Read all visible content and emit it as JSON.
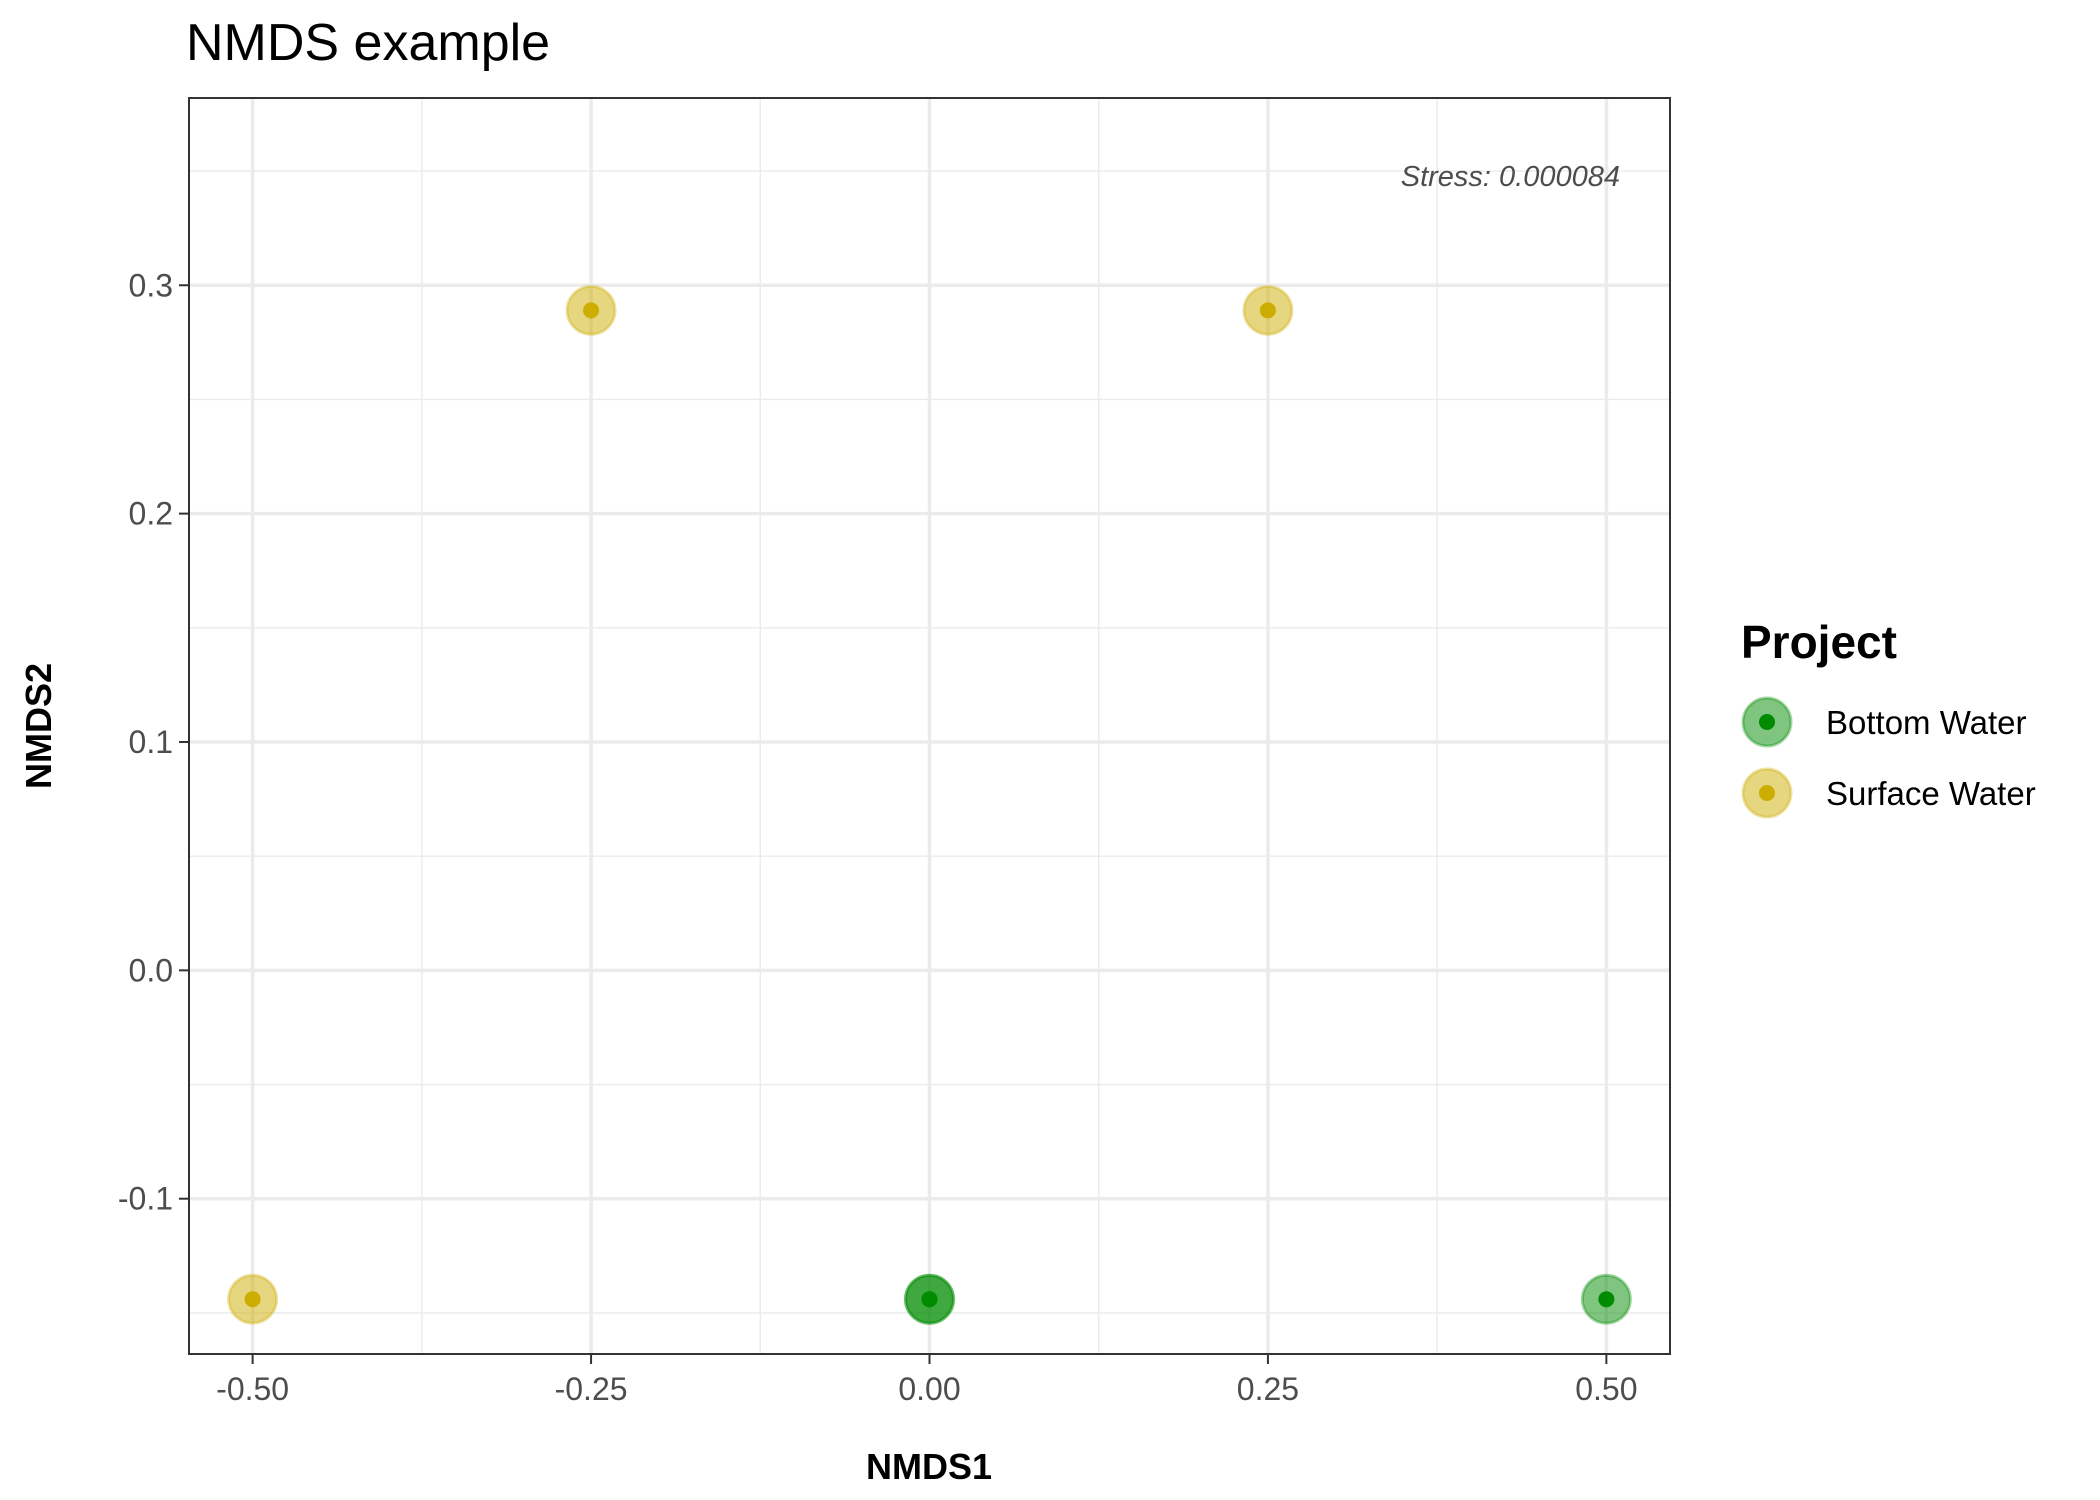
{
  "chart_data": {
    "type": "scatter",
    "title": "NMDS example",
    "xlabel": "NMDS1",
    "ylabel": "NMDS2",
    "xlim": [
      -0.547,
      0.547
    ],
    "ylim": [
      -0.168,
      0.382
    ],
    "x_ticks": [
      -0.5,
      -0.25,
      0.0,
      0.25,
      0.5
    ],
    "x_tick_labels": [
      "-0.50",
      "-0.25",
      "0.00",
      "0.25",
      "0.50"
    ],
    "y_ticks": [
      -0.1,
      0.0,
      0.1,
      0.2,
      0.3
    ],
    "y_tick_labels": [
      "-0.1",
      "0.0",
      "0.1",
      "0.2",
      "0.3"
    ],
    "grid": true,
    "annotation": "Stress: 0.000084",
    "legend": {
      "title": "Project",
      "position": "right"
    },
    "series": [
      {
        "name": "Bottom Water",
        "color": "#008B00",
        "points": [
          {
            "x": 0.0,
            "y": -0.144
          },
          {
            "x": 0.0,
            "y": -0.144
          },
          {
            "x": 0.5,
            "y": -0.144
          }
        ]
      },
      {
        "name": "Surface Water",
        "color": "#CDAD00",
        "points": [
          {
            "x": -0.5,
            "y": -0.144
          },
          {
            "x": -0.25,
            "y": 0.289
          },
          {
            "x": 0.25,
            "y": 0.289
          }
        ]
      }
    ]
  }
}
